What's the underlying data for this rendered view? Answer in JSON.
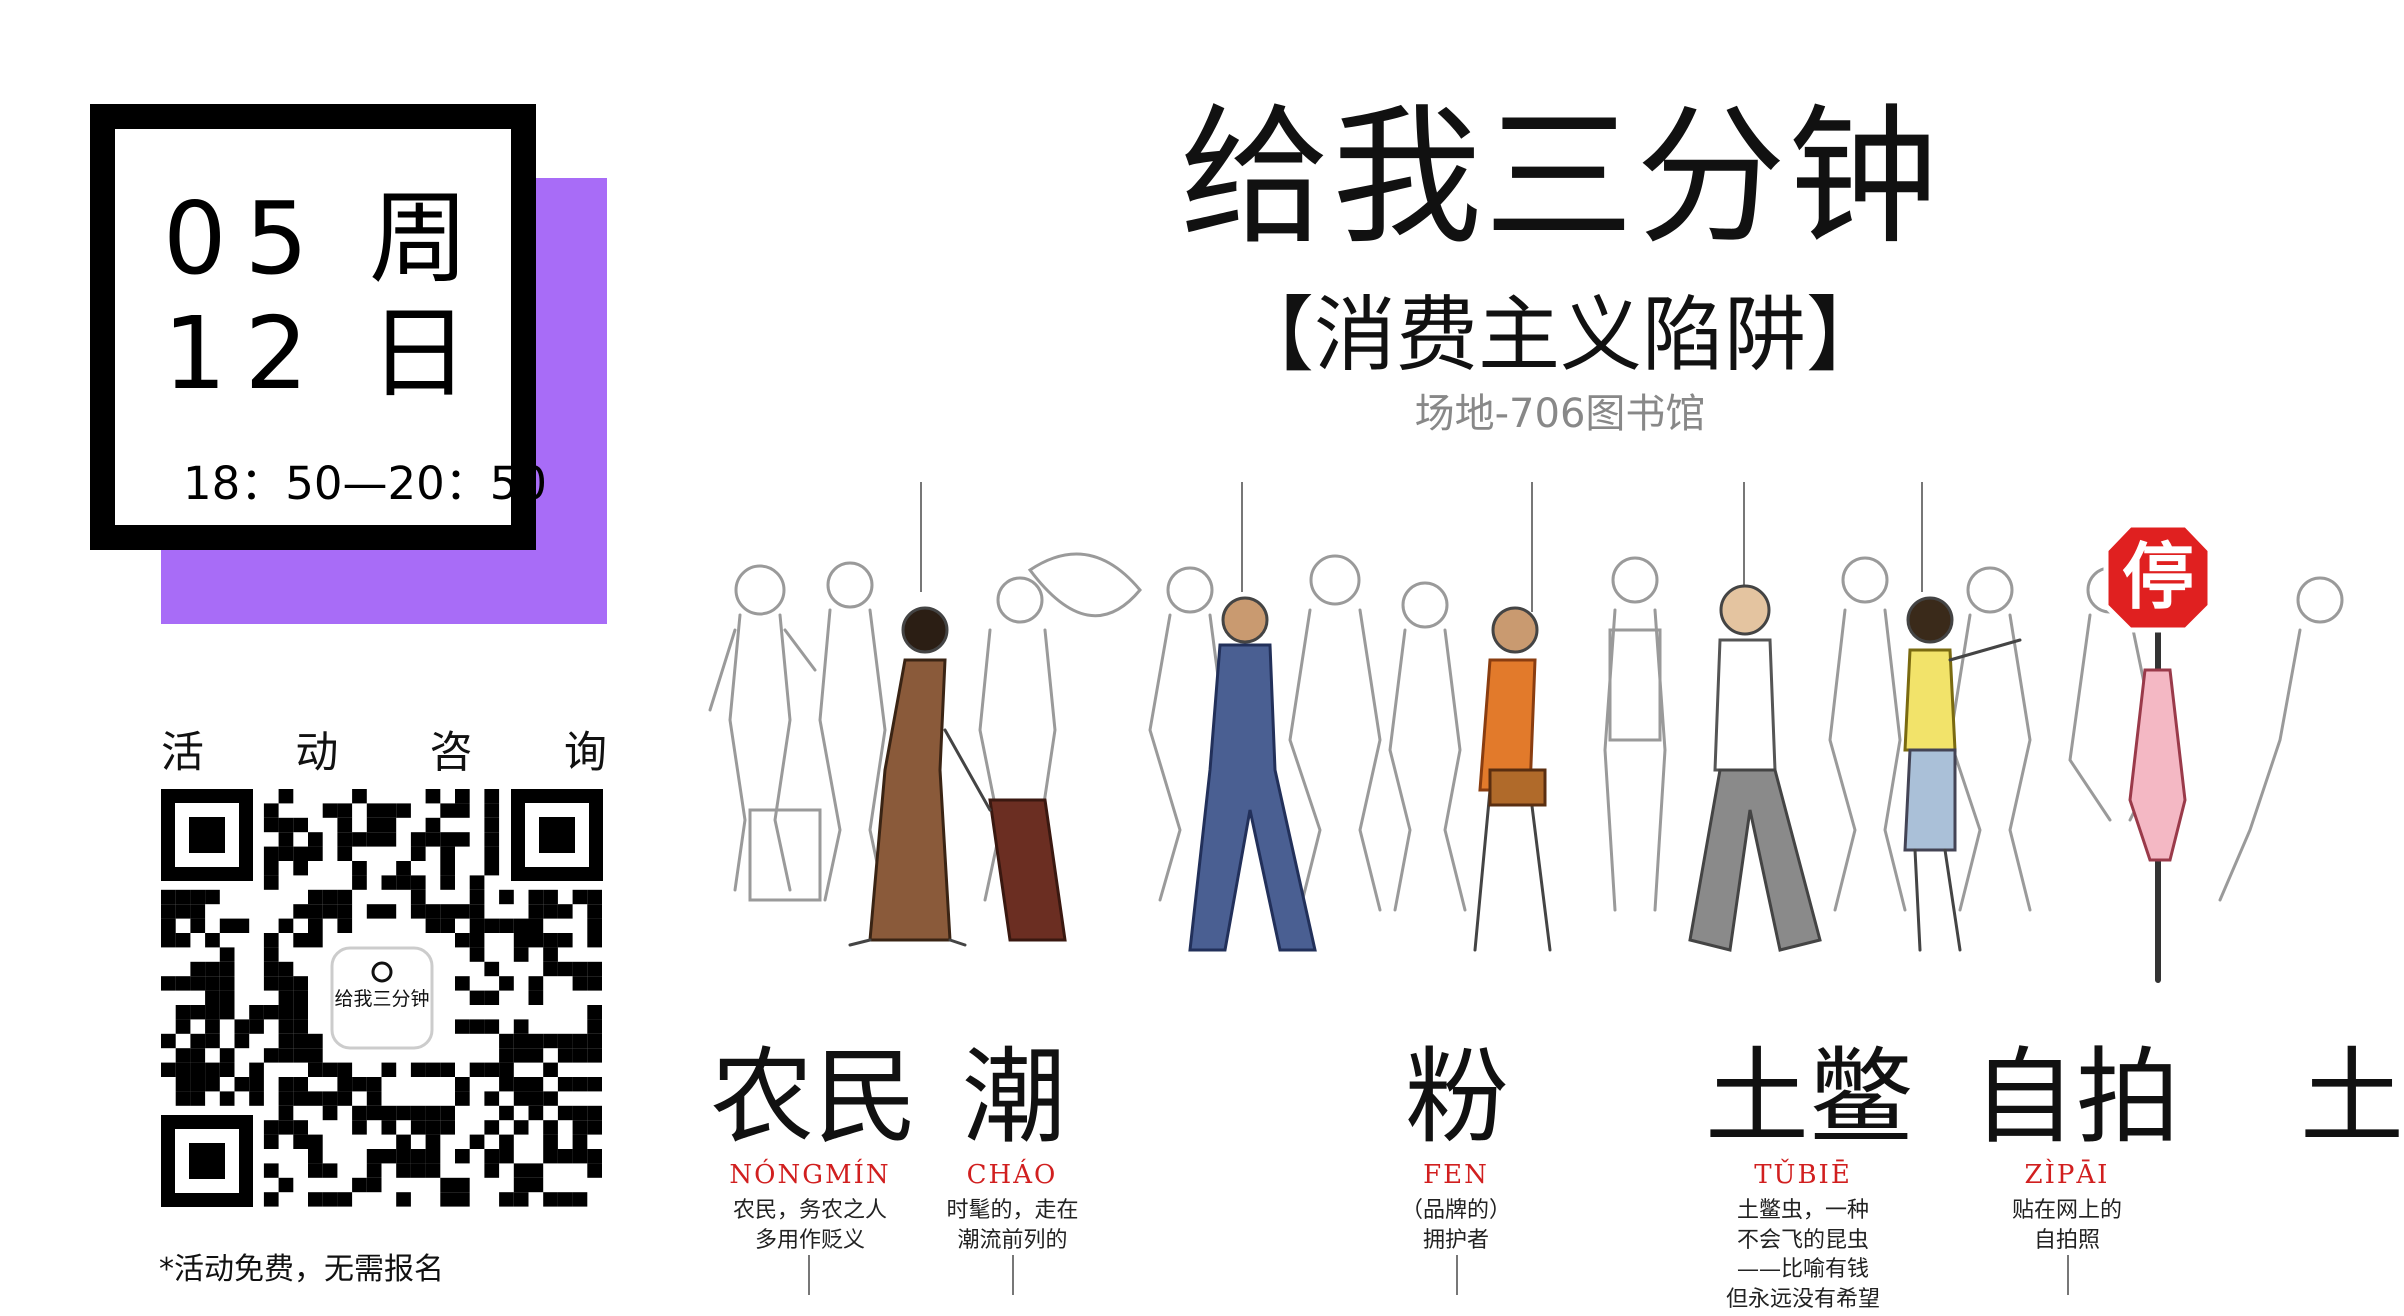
{
  "date_card": {
    "month": "05",
    "day": "12",
    "weekday_1": "周",
    "weekday_2": "日",
    "time": "18：50—20：50",
    "accent_color": "#a86cf7"
  },
  "consult": {
    "label_chars": [
      "活",
      "动",
      "咨",
      "询"
    ],
    "qr_logo_text": "给我三分钟",
    "footnote": "*活动免费，无需报名"
  },
  "header": {
    "title": "给我三分钟",
    "subtitle": "【消费主义陷阱】",
    "venue": "场地-706图书馆"
  },
  "labels": [
    {
      "word": "农民",
      "pinyin": "NÓNGMÍN",
      "desc": "农民，务农之人\n多用作贬义"
    },
    {
      "word": "潮",
      "pinyin": "CHÁO",
      "desc": "时髦的，走在\n潮流前列的"
    },
    {
      "word": "粉",
      "pinyin": "FEN",
      "desc": "（品牌的）\n拥护者"
    },
    {
      "word": "土鳖",
      "pinyin": "TǓBIĒ",
      "desc": "土鳖虫，一种\n不会飞的昆虫\n——比喻有钱\n但永远没有希望"
    },
    {
      "word": "自拍",
      "pinyin": "ZÌPĀI",
      "desc": "贴在网上的\n自拍照"
    },
    {
      "word": "土",
      "pinyin": "",
      "desc": ""
    }
  ],
  "stop_sign": {
    "text": "停",
    "color": "#e02020"
  },
  "icons": [
    "qr-code-icon",
    "stop-sign-icon"
  ]
}
